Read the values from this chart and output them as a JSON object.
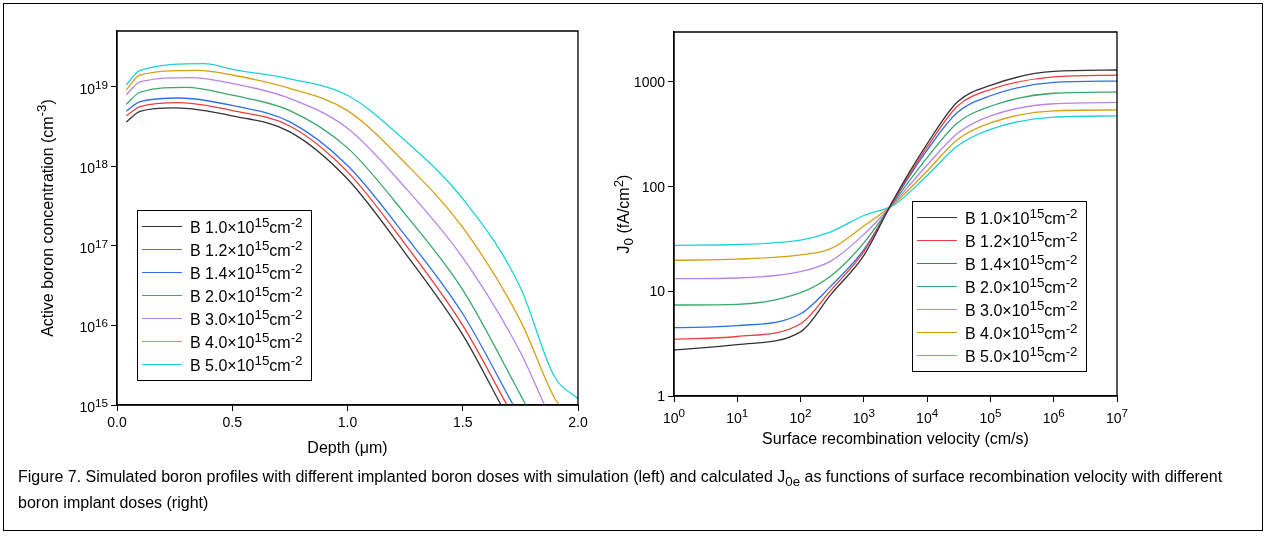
{
  "chart_data": [
    {
      "type": "line",
      "xlabel": "Depth (μm)",
      "ylabel": "Active boron concentration (cm$^{-3}$)",
      "log": "y",
      "xlim": [
        0,
        2
      ],
      "ylim": [
        1000000000000000.0,
        5e+19
      ],
      "xticks": [
        {
          "value": 0,
          "label": "0.0"
        },
        0.5,
        {
          "value": 1,
          "label": "1.0"
        },
        1.5,
        {
          "value": 2,
          "label": "2.0"
        }
      ],
      "yticks": [
        {
          "value": 1000000000000000.0,
          "label": "10$^{15}$"
        },
        {
          "value": 1e+16,
          "label": "10$^{16}$"
        },
        {
          "value": 1e+17,
          "label": "10$^{17}$"
        },
        {
          "value": 1e+18,
          "label": "10$^{18}$"
        },
        {
          "value": 1e+19,
          "label": "10$^{19}$"
        }
      ],
      "legend": "bottom left",
      "marker": "none",
      "line_style": "solid",
      "annotations": [
        "Figure 7. Simulated boron profiles with different implanted boron doses with simulation (left) and calculated J$_{0e}$ as functions of surface recombination velocity with different boron implant doses (right)"
      ],
      "series": [
        {
          "name": "B 1.0×10$^{15}$cm$^{-2}$",
          "color": "#333333",
          "x": [
            0.04,
            0.1,
            0.25,
            0.5,
            0.75,
            1.0,
            1.25,
            1.5,
            1.666
          ],
          "values": [
            3.6e+18,
            4.9e+18,
            5.4e+18,
            4.3e+18,
            2.7e+18,
            6.9e+17,
            8.1e+16,
            7600000000000000.0,
            1000000000000000.0
          ]
        },
        {
          "name": "B 1.2×10$^{15}$cm$^{-2}$",
          "color": "#f03c3c",
          "x": [
            0.04,
            0.1,
            0.27,
            0.5,
            0.75,
            1.0,
            1.25,
            1.5,
            1.692
          ],
          "values": [
            4.3e+18,
            5.6e+18,
            6.3e+18,
            5e+18,
            3.2e+18,
            8.5e+17,
            1.05e+17,
            1e+16,
            1000000000000000.0
          ]
        },
        {
          "name": "B 1.4×10$^{15}$cm$^{-2}$",
          "color": "#2e6fe6",
          "x": [
            0.04,
            0.1,
            0.27,
            0.5,
            0.75,
            1.0,
            1.25,
            1.5,
            1.719
          ],
          "values": [
            4.9e+18,
            6.5e+18,
            7.2e+18,
            5.8e+18,
            3.6e+18,
            1.02e+18,
            1.35e+17,
            1.4e+16,
            1000000000000000.0
          ]
        },
        {
          "name": "B 2.0×10$^{15}$cm$^{-2}$",
          "color": "#3aa86a",
          "x": [
            0.04,
            0.1,
            0.3,
            0.5,
            0.75,
            1.0,
            1.25,
            1.5,
            1.75,
            1.774
          ],
          "values": [
            6e+18,
            8.5e+18,
            9.8e+18,
            7.8e+18,
            5e+18,
            1.7e+18,
            2.5e+17,
            2.8e+16,
            1350000000000000.0,
            1000000000000000.0
          ]
        },
        {
          "name": "B 3.0×10$^{15}$cm$^{-2}$",
          "color": "#b784e8",
          "x": [
            0.04,
            0.1,
            0.32,
            0.5,
            0.75,
            1.0,
            1.25,
            1.5,
            1.75,
            1.855
          ],
          "values": [
            7.9e+18,
            1.15e+19,
            1.3e+19,
            1.1e+19,
            7.1e+18,
            3e+18,
            5.4e+17,
            7.1e+16,
            4600000000000000.0,
            1000000000000000.0
          ]
        },
        {
          "name": "B 4.0×10$^{15}$cm$^{-2}$",
          "color": "#d4a016",
          "x": [
            0.04,
            0.1,
            0.35,
            0.5,
            0.75,
            1.0,
            1.25,
            1.5,
            1.75,
            1.9,
            1.92
          ],
          "values": [
            9.1e+18,
            1.4e+19,
            1.6e+19,
            1.4e+19,
            9.5e+18,
            5e+18,
            1.1e+18,
            1.7e+17,
            1.15e+16,
            1200000000000000.0,
            1000000000000000.0
          ]
        },
        {
          "name": "B 5.0×10$^{15}$cm$^{-2}$",
          "color": "#1fd0d8",
          "x": [
            0.04,
            0.1,
            0.38,
            0.5,
            0.75,
            1.0,
            1.25,
            1.5,
            1.75,
            1.897,
            2.0
          ],
          "values": [
            1.05e+19,
            1.6e+19,
            1.95e+19,
            1.65e+19,
            1.25e+19,
            7.8e+18,
            2.1e+18,
            3.9e+17,
            3e+16,
            2300000000000000.0,
            1200000000000000.0
          ]
        }
      ]
    },
    {
      "type": "line",
      "xlabel": "Surface recombination velocity (cm/s)",
      "ylabel": "J$_{0}$ (fA/cm$^{2}$)",
      "log": "xy",
      "xlim": [
        1,
        10000000.0
      ],
      "ylim": [
        1,
        3000
      ],
      "xticks": [
        {
          "value": 1,
          "label": "10$^{0}$"
        },
        {
          "value": 10,
          "label": "10$^{1}$"
        },
        {
          "value": 100,
          "label": "10$^{2}$"
        },
        {
          "value": 1000,
          "label": "10$^{3}$"
        },
        {
          "value": 10000,
          "label": "10$^{4}$"
        },
        {
          "value": 100000,
          "label": "10$^{5}$"
        },
        {
          "value": 1000000,
          "label": "10$^{6}$"
        },
        {
          "value": 10000000,
          "label": "10$^{7}$"
        }
      ],
      "yticks": [
        1,
        10,
        100,
        1000
      ],
      "legend": "bottom right",
      "marker": "none",
      "line_style": "solid",
      "x": [
        1,
        10,
        100,
        300,
        1000,
        3000,
        10000,
        30000,
        100000,
        1000000,
        10000000
      ],
      "series": [
        {
          "name": "B 1.0×10$^{15}$cm$^{-2}$",
          "color": "#333333",
          "values": [
            2.75,
            3.1,
            4.1,
            9.3,
            22,
            77,
            256,
            643,
            929,
            1260,
            1300
          ]
        },
        {
          "name": "B 1.2×10$^{15}$cm$^{-2}$",
          "color": "#f03c3c",
          "values": [
            3.5,
            3.7,
            4.9,
            10.2,
            24,
            75,
            238,
            586,
            847,
            1117,
            1160
          ]
        },
        {
          "name": "B 1.4×10$^{15}$cm$^{-2}$",
          "color": "#2e6fe6",
          "values": [
            4.5,
            4.7,
            6.1,
            11.2,
            25,
            74,
            223,
            510,
            738,
            991,
            1020
          ]
        },
        {
          "name": "B 2.0×10$^{15}$cm$^{-2}$",
          "color": "#3aa86a",
          "values": [
            7.4,
            7.5,
            9.7,
            14,
            29,
            72,
            189,
            406,
            586,
            780,
            800
          ]
        },
        {
          "name": "B 3.0×10$^{15}$cm$^{-2}$",
          "color": "#b784e8",
          "values": [
            13.2,
            13.4,
            15.4,
            19.4,
            35,
            70,
            161,
            322,
            474,
            619,
            637
          ]
        },
        {
          "name": "B 4.0×10$^{15}$cm$^{-2}$",
          "color": "#d4a016",
          "values": [
            19.8,
            20.3,
            22.3,
            25.6,
            42,
            69,
            141,
            281,
            406,
            530,
            540
          ]
        },
        {
          "name": "B 5.0×10$^{15}$cm$^{-2}$",
          "color": "#1fd0d8",
          "values": [
            27.5,
            28,
            30.8,
            37,
            53,
            67,
            128,
            244,
            353,
            461,
            474
          ]
        }
      ]
    }
  ]
}
